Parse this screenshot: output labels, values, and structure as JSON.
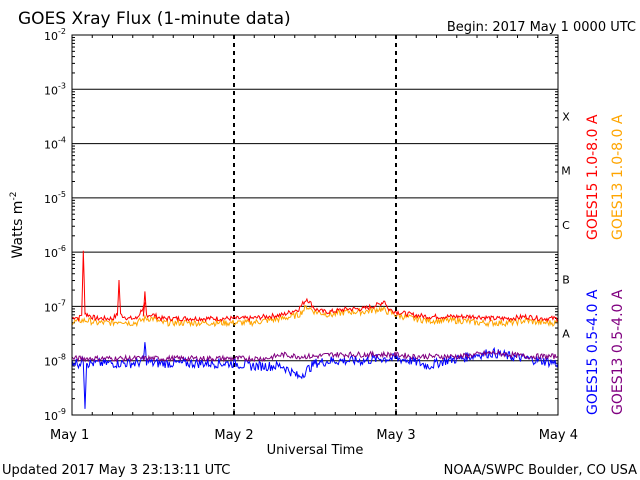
{
  "header": {
    "title": "GOES Xray Flux (1-minute data)",
    "begin": "Begin:  2017 May 1 0000 UTC"
  },
  "footer": {
    "updated": "Updated 2017 May  3 23:13:11 UTC",
    "credit": "NOAA/SWPC Boulder, CO USA"
  },
  "chart_data": {
    "type": "line",
    "title": "GOES Xray Flux (1-minute data)",
    "xlabel": "Universal Time",
    "ylabel": "Watts m",
    "ylabel_exponent": "-2",
    "yscale": "log",
    "ylim": [
      1e-09,
      0.01
    ],
    "xlim": [
      0,
      3
    ],
    "x_ticks": [
      {
        "pos": 0,
        "label": "May 1"
      },
      {
        "pos": 1,
        "label": "May 2"
      },
      {
        "pos": 2,
        "label": "May 3"
      },
      {
        "pos": 3,
        "label": "May 4"
      }
    ],
    "y_ticks": [
      {
        "exp": -9,
        "label": "10",
        "sup": "-9"
      },
      {
        "exp": -8,
        "label": "10",
        "sup": "-8"
      },
      {
        "exp": -7,
        "label": "10",
        "sup": "-7"
      },
      {
        "exp": -6,
        "label": "10",
        "sup": "-6"
      },
      {
        "exp": -5,
        "label": "10",
        "sup": "-5"
      },
      {
        "exp": -4,
        "label": "10",
        "sup": "-4"
      },
      {
        "exp": -3,
        "label": "10",
        "sup": "-3"
      },
      {
        "exp": -2,
        "label": "10",
        "sup": "-2"
      }
    ],
    "flare_classes": [
      {
        "label": "X",
        "exp": -4
      },
      {
        "label": "M",
        "exp": -5
      },
      {
        "label": "C",
        "exp": -6
      },
      {
        "label": "B",
        "exp": -7
      },
      {
        "label": "A",
        "exp": -8
      }
    ],
    "grid": true,
    "series": [
      {
        "name": "GOES15 1.0-8.0 A",
        "color": "#ff0000",
        "x": [
          0.0,
          0.02,
          0.04,
          0.06,
          0.07,
          0.08,
          0.09,
          0.1,
          0.12,
          0.15,
          0.2,
          0.25,
          0.28,
          0.29,
          0.3,
          0.35,
          0.4,
          0.45,
          0.44,
          0.45,
          0.46,
          0.5,
          0.55,
          0.6,
          0.7,
          0.8,
          0.9,
          1.0,
          1.1,
          1.2,
          1.3,
          1.4,
          1.45,
          1.5,
          1.55,
          1.6,
          1.7,
          1.8,
          1.9,
          1.93,
          1.95,
          2.0,
          2.1,
          2.2,
          2.3,
          2.4,
          2.5,
          2.6,
          2.7,
          2.8,
          2.9,
          3.0
        ],
        "y": [
          6e-08,
          6.5e-08,
          6e-08,
          7e-08,
          1e-06,
          8e-08,
          7e-08,
          7e-08,
          6.5e-08,
          6e-08,
          6e-08,
          6e-08,
          7e-08,
          3e-07,
          7e-08,
          6e-08,
          6e-08,
          1.1e-07,
          6e-08,
          1.8e-07,
          7e-08,
          7e-08,
          6e-08,
          6e-08,
          6e-08,
          6e-08,
          6e-08,
          6e-08,
          6e-08,
          6.5e-08,
          7e-08,
          9e-08,
          1.4e-07,
          9e-08,
          8e-08,
          8e-08,
          9e-08,
          9e-08,
          1.1e-07,
          1.3e-07,
          9e-08,
          8e-08,
          7e-08,
          6.5e-08,
          6.5e-08,
          6.5e-08,
          6.5e-08,
          6e-08,
          6e-08,
          6.5e-08,
          6e-08,
          6e-08
        ]
      },
      {
        "name": "GOES13 1.0-8.0 A",
        "color": "#ffa500",
        "x": [
          0.0,
          0.05,
          0.1,
          0.15,
          0.2,
          0.25,
          0.3,
          0.35,
          0.4,
          0.45,
          0.5,
          0.55,
          0.6,
          0.7,
          0.8,
          0.9,
          1.0,
          1.1,
          1.2,
          1.3,
          1.4,
          1.45,
          1.5,
          1.6,
          1.7,
          1.8,
          1.9,
          1.95,
          2.0,
          2.1,
          2.2,
          2.3,
          2.4,
          2.5,
          2.6,
          2.7,
          2.8,
          2.9,
          3.0
        ],
        "y": [
          5e-08,
          5.5e-08,
          5.5e-08,
          5e-08,
          5e-08,
          5e-08,
          5.5e-08,
          5e-08,
          5e-08,
          6e-08,
          6e-08,
          5e-08,
          5e-08,
          5e-08,
          5e-08,
          5e-08,
          5e-08,
          5e-08,
          5.5e-08,
          6e-08,
          7e-08,
          1e-07,
          8e-08,
          7e-08,
          8e-08,
          8e-08,
          9e-08,
          8e-08,
          7e-08,
          6e-08,
          5.5e-08,
          5.5e-08,
          5.5e-08,
          5e-08,
          5e-08,
          5e-08,
          5.5e-08,
          5e-08,
          5e-08
        ]
      },
      {
        "name": "GOES15 0.5-4.0 A",
        "color": "#0000ff",
        "x": [
          0.0,
          0.04,
          0.07,
          0.08,
          0.09,
          0.1,
          0.2,
          0.3,
          0.4,
          0.44,
          0.45,
          0.46,
          0.5,
          0.6,
          0.7,
          0.8,
          0.9,
          1.0,
          1.1,
          1.2,
          1.3,
          1.4,
          1.5,
          1.6,
          1.7,
          1.8,
          1.9,
          2.0,
          2.1,
          2.2,
          2.3,
          2.4,
          2.5,
          2.6,
          2.7,
          2.8,
          2.9,
          3.0
        ],
        "y": [
          1e-08,
          9e-09,
          1e-08,
          1.5e-09,
          1e-08,
          9e-09,
          9e-09,
          9e-09,
          9e-09,
          1e-08,
          2e-08,
          1e-08,
          9e-09,
          9e-09,
          9e-09,
          9e-09,
          9e-09,
          9e-09,
          8e-09,
          8e-09,
          8e-09,
          5e-09,
          9e-09,
          1e-08,
          1e-08,
          1e-08,
          1.1e-08,
          1.1e-08,
          1e-08,
          8e-09,
          1e-08,
          1.1e-08,
          1.3e-08,
          1.4e-08,
          1.2e-08,
          1.1e-08,
          1e-08,
          9e-09
        ]
      },
      {
        "name": "GOES13 0.5-4.0 A",
        "color": "#800080",
        "x": [
          0.0,
          0.1,
          0.2,
          0.3,
          0.4,
          0.5,
          0.6,
          0.7,
          0.8,
          0.9,
          1.0,
          1.1,
          1.2,
          1.3,
          1.4,
          1.5,
          1.6,
          1.7,
          1.8,
          1.9,
          2.0,
          2.1,
          2.2,
          2.3,
          2.4,
          2.5,
          2.6,
          2.7,
          2.8,
          2.9,
          3.0
        ],
        "y": [
          1.1e-08,
          1.1e-08,
          1.1e-08,
          1.1e-08,
          1.1e-08,
          1.1e-08,
          1.1e-08,
          1.1e-08,
          1.1e-08,
          1.1e-08,
          1.1e-08,
          1.1e-08,
          1.1e-08,
          1.3e-08,
          1.2e-08,
          1.2e-08,
          1.3e-08,
          1.3e-08,
          1.3e-08,
          1.3e-08,
          1.3e-08,
          1.2e-08,
          1.2e-08,
          1.2e-08,
          1.2e-08,
          1.3e-08,
          1.4e-08,
          1.3e-08,
          1.2e-08,
          1.2e-08,
          1.2e-08
        ]
      }
    ]
  }
}
